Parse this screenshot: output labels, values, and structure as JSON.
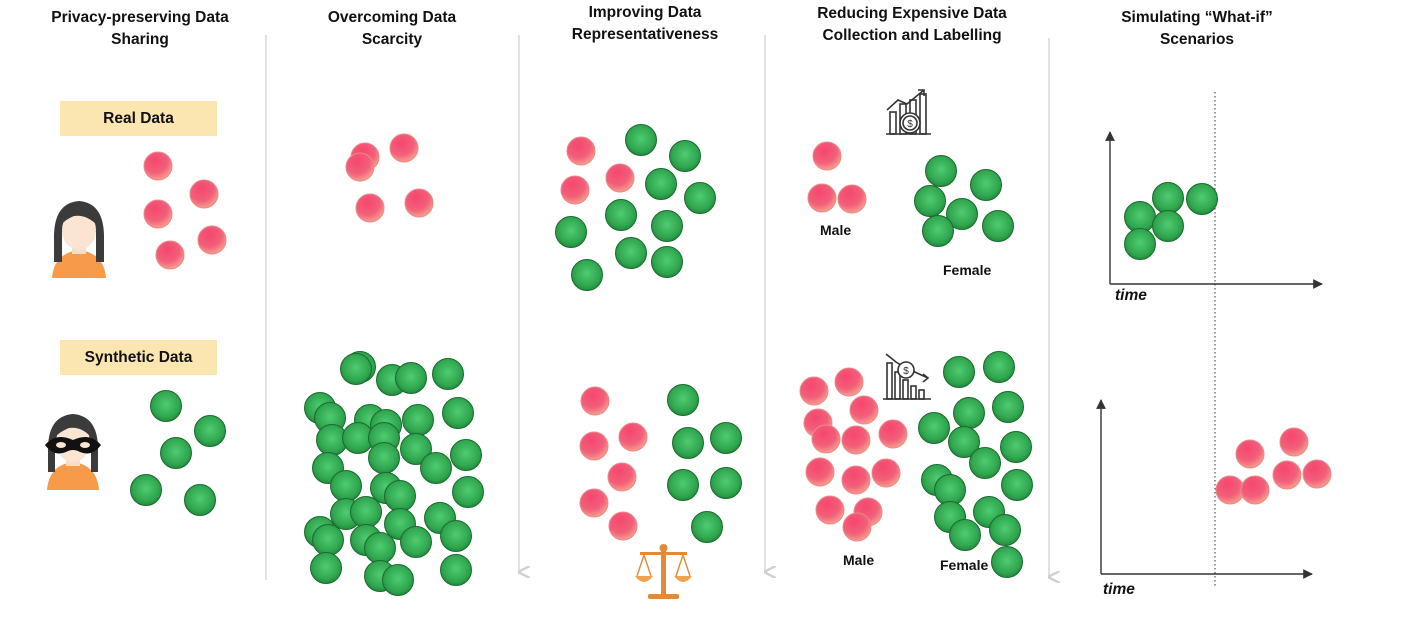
{
  "columns": [
    {
      "title_l1": "Privacy-preserving Data",
      "title_l2": "Sharing"
    },
    {
      "title_l1": "Overcoming Data",
      "title_l2": "Scarcity"
    },
    {
      "title_l1": "Improving Data",
      "title_l2": "Representativeness"
    },
    {
      "title_l1": "Reducing Expensive Data",
      "title_l2": "Collection and Labelling"
    },
    {
      "title_l1": "Simulating “What-if”",
      "title_l2": "Scenarios"
    }
  ],
  "privacy": {
    "real_label": "Real Data",
    "synthetic_label": "Synthetic Data"
  },
  "reducing": {
    "top_male": "Male",
    "top_female": "Female",
    "bottom_male": "Male",
    "bottom_female": "Female"
  },
  "whatif": {
    "top_axis_label": "time",
    "bottom_axis_label": "time"
  },
  "icons": {
    "real_person": "woman-avatar-icon",
    "synthetic_person": "masked-woman-avatar-icon",
    "cost_up": "rising-cost-chart-icon",
    "cost_down": "falling-cost-chart-icon",
    "fairness": "balance-scale-icon"
  },
  "colors": {
    "red_ball": "#f0466e",
    "green_ball": "#2e9e4a",
    "label_bg": "#fbe6b2",
    "divider": "#dcdcdc"
  }
}
